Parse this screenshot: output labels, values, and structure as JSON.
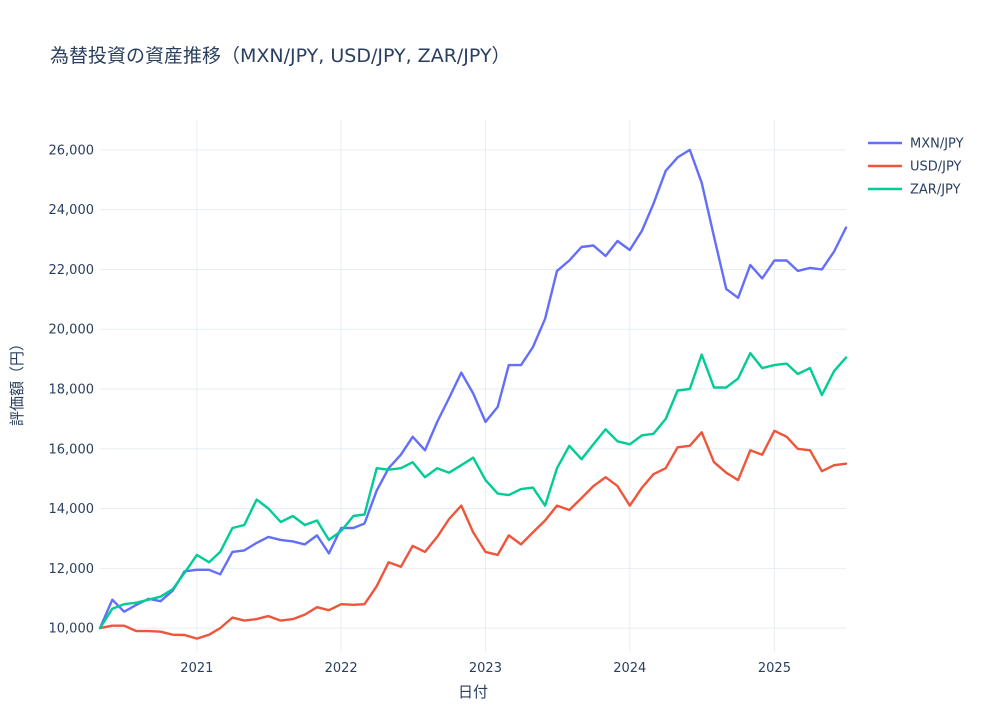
{
  "chart_data": {
    "type": "line",
    "title": "為替投資の資産推移（MXN/JPY, USD/JPY, ZAR/JPY）",
    "xlabel": "日付",
    "ylabel": "評価額（円）",
    "x_ticks": [
      "2021",
      "2022",
      "2023",
      "2024",
      "2025"
    ],
    "y_ticks": [
      "10,000",
      "12,000",
      "14,000",
      "16,000",
      "18,000",
      "20,000",
      "22,000",
      "24,000",
      "26,000"
    ],
    "x_tick_dates": [
      "2021-01-01",
      "2022-01-01",
      "2023-01-01",
      "2024-01-01",
      "2025-01-01"
    ],
    "y_tick_values": [
      10000,
      12000,
      14000,
      16000,
      18000,
      20000,
      22000,
      24000,
      26000
    ],
    "xlim": [
      "2020-05-01",
      "2025-07-01"
    ],
    "ylim": [
      9200,
      27000
    ],
    "grid": true,
    "legend_position": "top-right",
    "x": [
      "2020-05",
      "2020-06",
      "2020-07",
      "2020-08",
      "2020-09",
      "2020-10",
      "2020-11",
      "2020-12",
      "2021-01",
      "2021-02",
      "2021-03",
      "2021-04",
      "2021-05",
      "2021-06",
      "2021-07",
      "2021-08",
      "2021-09",
      "2021-10",
      "2021-11",
      "2021-12",
      "2022-01",
      "2022-02",
      "2022-03",
      "2022-04",
      "2022-05",
      "2022-06",
      "2022-07",
      "2022-08",
      "2022-09",
      "2022-10",
      "2022-11",
      "2022-12",
      "2023-01",
      "2023-02",
      "2023-03",
      "2023-04",
      "2023-05",
      "2023-06",
      "2023-07",
      "2023-08",
      "2023-09",
      "2023-10",
      "2023-11",
      "2023-12",
      "2024-01",
      "2024-02",
      "2024-03",
      "2024-04",
      "2024-05",
      "2024-06",
      "2024-07",
      "2024-08",
      "2024-09",
      "2024-10",
      "2024-11",
      "2024-12",
      "2025-01",
      "2025-02",
      "2025-03",
      "2025-04",
      "2025-05",
      "2025-06",
      "2025-07"
    ],
    "series": [
      {
        "name": "MXN/JPY",
        "color": "#636efa",
        "values": [
          10000,
          10950,
          10550,
          10780,
          10980,
          10900,
          11250,
          11900,
          11950,
          11950,
          11800,
          12550,
          12600,
          12850,
          13050,
          12950,
          12900,
          12800,
          13100,
          12500,
          13350,
          13350,
          13500,
          14600,
          15350,
          15800,
          16400,
          15950,
          16900,
          17700,
          18550,
          17850,
          16900,
          17400,
          18800,
          18800,
          19400,
          20350,
          21950,
          22300,
          22750,
          22800,
          22450,
          22950,
          22650,
          23300,
          24200,
          25300,
          25750,
          26000,
          24900,
          23100,
          21350,
          21050,
          22150,
          21700,
          22300,
          22300,
          21950,
          22050,
          22000,
          22600,
          23400
        ]
      },
      {
        "name": "USD/JPY",
        "color": "#ef553b",
        "values": [
          10000,
          10080,
          10080,
          9900,
          9900,
          9880,
          9780,
          9770,
          9650,
          9780,
          10000,
          10350,
          10250,
          10300,
          10400,
          10250,
          10300,
          10450,
          10700,
          10600,
          10800,
          10780,
          10800,
          11400,
          12200,
          12050,
          12750,
          12550,
          13050,
          13650,
          14100,
          13200,
          12550,
          12450,
          13100,
          12800,
          13200,
          13600,
          14100,
          13950,
          14350,
          14750,
          15050,
          14750,
          14100,
          14700,
          15150,
          15350,
          16050,
          16100,
          16550,
          15550,
          15200,
          14950,
          15950,
          15800,
          16600,
          16400,
          16000,
          15950,
          15250,
          15450,
          15500
        ]
      },
      {
        "name": "ZAR/JPY",
        "color": "#00cc96",
        "values": [
          10000,
          10650,
          10800,
          10850,
          10950,
          11050,
          11300,
          11850,
          12450,
          12200,
          12550,
          13350,
          13450,
          14300,
          14000,
          13550,
          13750,
          13450,
          13600,
          12950,
          13250,
          13750,
          13800,
          15350,
          15300,
          15350,
          15550,
          15050,
          15350,
          15200,
          15450,
          15700,
          14950,
          14500,
          14450,
          14650,
          14700,
          14100,
          15350,
          16100,
          15650,
          16150,
          16650,
          16250,
          16150,
          16450,
          16500,
          17000,
          17950,
          18000,
          19150,
          18050,
          18050,
          18350,
          19200,
          18700,
          18800,
          18850,
          18500,
          18700,
          17800,
          18600,
          19050
        ]
      }
    ]
  }
}
